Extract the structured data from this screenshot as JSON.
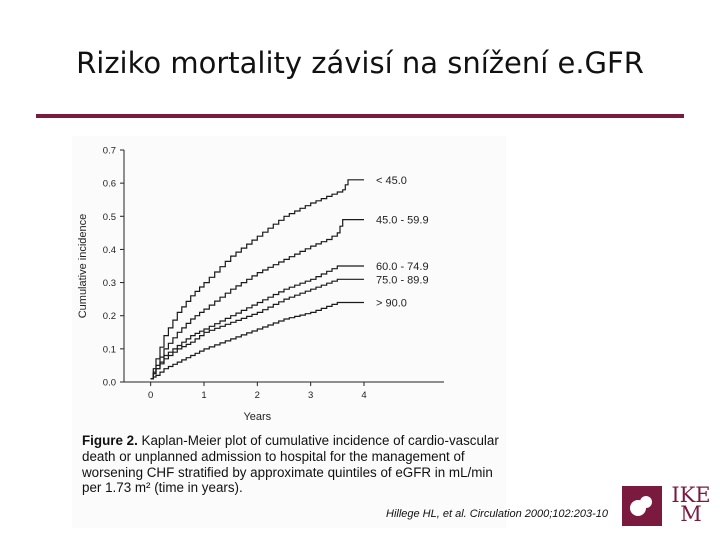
{
  "slide": {
    "title": "Riziko mortality závisí na snížení e.GFR",
    "accent_color": "#7a1a3e"
  },
  "chart_data": {
    "type": "line",
    "title": "",
    "xlabel": "Years",
    "ylabel": "Cumulative incidence",
    "xlim": [
      -0.5,
      5.5
    ],
    "ylim": [
      0,
      0.7
    ],
    "x_ticks": [
      "0",
      "1",
      "2",
      "3",
      "4"
    ],
    "y_ticks": [
      "0.0",
      "0.1",
      "0.2",
      "0.3",
      "0.4",
      "0.5",
      "0.6",
      "0.7"
    ],
    "grid": false,
    "legend_placement": "right, labels at line ends",
    "series": [
      {
        "name": "< 45.0",
        "x": [
          0,
          0.1,
          0.25,
          0.5,
          0.75,
          1,
          1.5,
          2,
          2.5,
          3,
          3.3,
          3.6,
          3.7,
          4
        ],
        "y": [
          0.01,
          0.07,
          0.14,
          0.21,
          0.26,
          0.3,
          0.38,
          0.44,
          0.5,
          0.54,
          0.56,
          0.58,
          0.61,
          0.61
        ]
      },
      {
        "name": "45.0 - 59.9",
        "x": [
          0,
          0.1,
          0.25,
          0.5,
          0.75,
          1,
          1.5,
          2,
          2.5,
          3,
          3.3,
          3.5,
          3.6,
          4
        ],
        "y": [
          0.01,
          0.05,
          0.1,
          0.15,
          0.19,
          0.22,
          0.28,
          0.33,
          0.37,
          0.41,
          0.43,
          0.45,
          0.49,
          0.49
        ]
      },
      {
        "name": "60.0 - 74.9",
        "x": [
          0,
          0.1,
          0.25,
          0.5,
          0.75,
          1,
          1.5,
          2,
          2.5,
          3,
          3.5,
          4
        ],
        "y": [
          0.01,
          0.04,
          0.08,
          0.11,
          0.14,
          0.16,
          0.2,
          0.24,
          0.28,
          0.31,
          0.35,
          0.35
        ]
      },
      {
        "name": "75.0 - 89.9",
        "x": [
          0,
          0.1,
          0.25,
          0.5,
          0.75,
          1,
          1.5,
          2,
          2.5,
          3,
          3.5,
          4
        ],
        "y": [
          0.01,
          0.04,
          0.07,
          0.1,
          0.12,
          0.15,
          0.18,
          0.21,
          0.25,
          0.28,
          0.31,
          0.31
        ]
      },
      {
        "name": "> 90.0",
        "x": [
          0,
          0.1,
          0.25,
          0.5,
          0.75,
          1,
          1.5,
          2,
          2.5,
          3,
          3.5,
          4
        ],
        "y": [
          0.01,
          0.02,
          0.04,
          0.06,
          0.08,
          0.1,
          0.13,
          0.16,
          0.19,
          0.21,
          0.24,
          0.24
        ]
      }
    ]
  },
  "figure_caption": {
    "label": "Figure 2.",
    "text": "Kaplan-Meier plot of cumulative incidence of cardio-vascular death or unplanned admission to hospital for the management of worsening CHF stratified by approximate quintiles of eGFR in mL/min per 1.73 m² (time in years)."
  },
  "citation": "Hillege HL, et al. Circulation 2000;102:203-10",
  "logo": {
    "text_line1": "IKE",
    "text_line2": "M"
  }
}
